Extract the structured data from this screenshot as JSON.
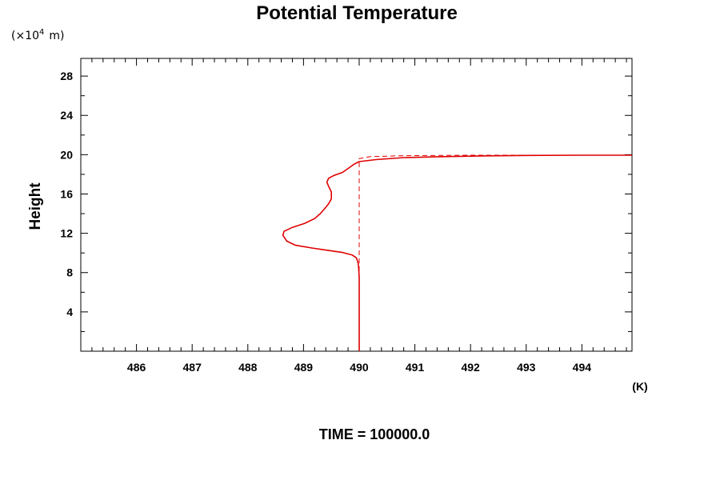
{
  "chart_data": {
    "type": "line",
    "title": "Potential Temperature",
    "ylabel": "Height",
    "y_unit_prefix": "(×10",
    "y_unit_exp": "4",
    "y_unit_suffix": "m)",
    "xlabel": "(K)",
    "xlim": [
      485.0,
      494.9
    ],
    "ylim": [
      0,
      29.8
    ],
    "x_ticks": [
      486,
      487,
      488,
      489,
      490,
      491,
      492,
      493,
      494
    ],
    "y_ticks": [
      4,
      8,
      12,
      16,
      20,
      24,
      28
    ],
    "series": [
      {
        "style": "solid",
        "color": "#e00000",
        "x": [
          490.0,
          490.0,
          490.0,
          490.0,
          490.0,
          489.99,
          489.98,
          489.95,
          489.87,
          489.7,
          489.45,
          489.15,
          488.85,
          488.7,
          488.63,
          488.65,
          488.8,
          489.02,
          489.2,
          489.3,
          489.38,
          489.45,
          489.5,
          489.5,
          489.45,
          489.42,
          489.45,
          489.55,
          489.7,
          489.8,
          489.9,
          490.0,
          490.3,
          490.8,
          491.5,
          492.3,
          493.0,
          494.0,
          494.9
        ],
        "y": [
          0.0,
          2.0,
          4.0,
          6.0,
          7.5,
          8.5,
          9.0,
          9.5,
          9.8,
          10.05,
          10.25,
          10.5,
          10.8,
          11.2,
          11.8,
          12.2,
          12.6,
          13.0,
          13.5,
          14.0,
          14.5,
          15.0,
          15.5,
          16.2,
          16.8,
          17.2,
          17.6,
          17.9,
          18.2,
          18.6,
          19.0,
          19.3,
          19.5,
          19.7,
          19.8,
          19.88,
          19.92,
          19.95,
          19.95
        ]
      },
      {
        "style": "dashed",
        "color": "#e00000",
        "x": [
          490.0,
          490.0,
          490.0,
          490.2,
          490.8,
          492.0,
          494.9
        ],
        "y": [
          0.0,
          18.0,
          19.6,
          19.8,
          19.9,
          19.95,
          19.95
        ]
      }
    ]
  },
  "footer": "TIME = 100000.0"
}
